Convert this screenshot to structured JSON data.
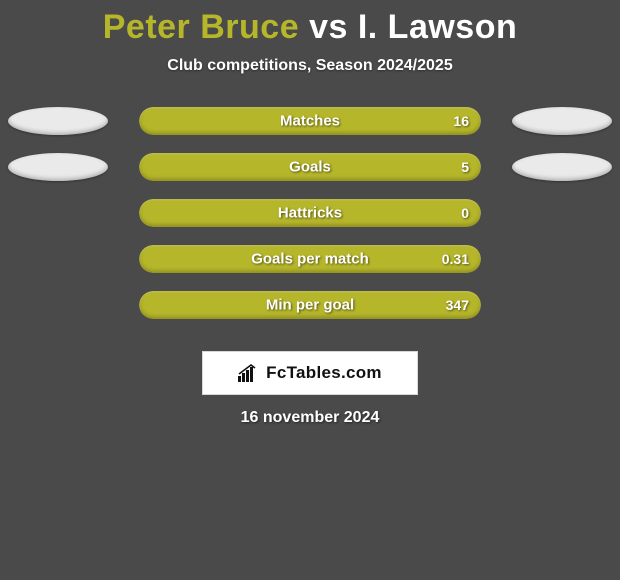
{
  "background_color": "#4a4a4a",
  "title": {
    "player1": "Peter Bruce",
    "vs": "vs",
    "player2": "I. Lawson",
    "player1_color": "#b6b62b",
    "vs_color": "#ffffff",
    "player2_color": "#ffffff"
  },
  "subtitle": "Club competitions, Season 2024/2025",
  "stats": {
    "bar_color": "#b6b62b",
    "bar_bg_color": "#3f3f3f",
    "ellipse_left_color": "#eaeaea",
    "ellipse_right_color": "#eaeaea",
    "rows": [
      {
        "label": "Matches",
        "value": "16",
        "fill_pct": 100,
        "show_ellipses": true
      },
      {
        "label": "Goals",
        "value": "5",
        "fill_pct": 100,
        "show_ellipses": true
      },
      {
        "label": "Hattricks",
        "value": "0",
        "fill_pct": 100,
        "show_ellipses": false
      },
      {
        "label": "Goals per match",
        "value": "0.31",
        "fill_pct": 100,
        "show_ellipses": false
      },
      {
        "label": "Min per goal",
        "value": "347",
        "fill_pct": 100,
        "show_ellipses": false
      }
    ]
  },
  "brand": {
    "text": "FcTables.com",
    "bg_color": "#ffffff",
    "icon_color": "#111111"
  },
  "date": "16 november 2024"
}
